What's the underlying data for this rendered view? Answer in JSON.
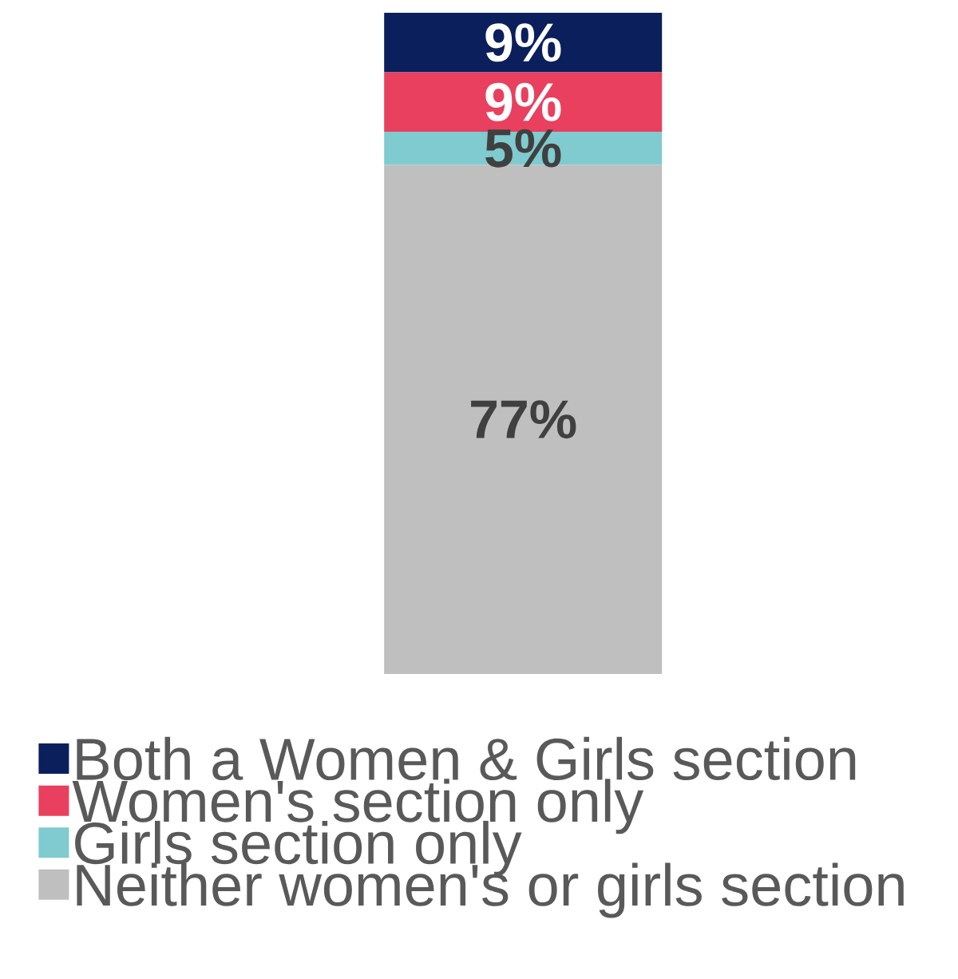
{
  "chart_data": {
    "type": "bar",
    "stacked": true,
    "categories": [
      null
    ],
    "legend": "bottom",
    "series": [
      {
        "name": "Neither women's or girls section",
        "color": "#bfbfbf",
        "values": [
          77
        ],
        "value_labels": [
          "77%"
        ]
      },
      {
        "name": "Girls section only",
        "color": "#7fcbcf",
        "values": [
          5
        ],
        "value_labels": [
          "5%"
        ]
      },
      {
        "name": "Women's section only",
        "color": "#e8405e",
        "values": [
          9
        ],
        "value_labels": [
          "9%"
        ]
      },
      {
        "name": "Both a Women & Girls section",
        "color": "#0b1f5c",
        "values": [
          9
        ],
        "value_labels": [
          "9%"
        ]
      }
    ]
  }
}
